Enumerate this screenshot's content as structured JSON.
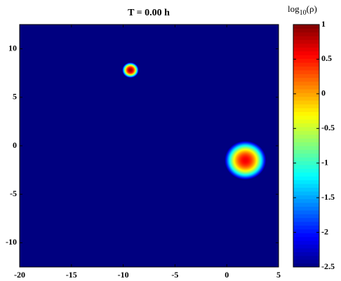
{
  "chart_data": {
    "type": "heatmap",
    "title": "T =  0.00 h",
    "colorbar_label": {
      "base": "log",
      "sub": "10",
      "rest": "(ρ)"
    },
    "xlim": [
      -20,
      5
    ],
    "xticks": [
      -20,
      -15,
      -10,
      -5,
      0,
      5
    ],
    "ylim": [
      -12.5,
      12.5
    ],
    "yticks": [
      -10,
      -5,
      0,
      5,
      10
    ],
    "clim": [
      -2.5,
      1
    ],
    "cticks": [
      -2.5,
      -2,
      -1.5,
      -1,
      -0.5,
      0,
      0.5,
      1
    ],
    "colormap": "jet",
    "background": -2.5,
    "sources": [
      {
        "x": -9.3,
        "y": 7.8,
        "peak": 0.9,
        "radius": 0.8
      },
      {
        "x": 1.8,
        "y": -1.5,
        "peak": 0.6,
        "radius": 2.0
      }
    ]
  }
}
